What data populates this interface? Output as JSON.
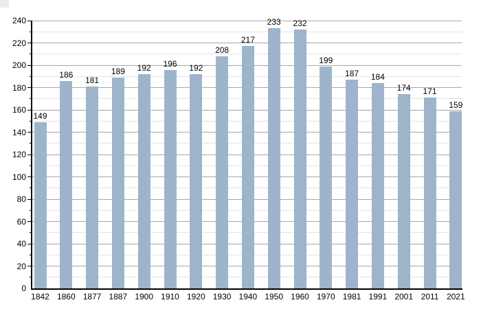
{
  "chart_data": {
    "type": "bar",
    "categories": [
      "1842",
      "1860",
      "1877",
      "1887",
      "1900",
      "1910",
      "1920",
      "1930",
      "1940",
      "1950",
      "1960",
      "1970",
      "1981",
      "1991",
      "2001",
      "2011",
      "2021"
    ],
    "values": [
      149,
      186,
      181,
      189,
      192,
      196,
      192,
      208,
      217,
      233,
      232,
      199,
      187,
      184,
      174,
      171,
      159
    ],
    "xlabel": "",
    "ylabel": "",
    "ylim": [
      0,
      240
    ],
    "ytick_step": 20,
    "minor_ytick_step": 10,
    "yticks": [
      "0",
      "20",
      "40",
      "60",
      "80",
      "100",
      "120",
      "140",
      "160",
      "180",
      "200",
      "220",
      "240"
    ],
    "data_labels": true,
    "grid": true,
    "legend": false,
    "colors": {
      "bar_fill": "#9db4cb",
      "major_grid": "#a6a6a6",
      "minor_grid": "#e3e3e3",
      "axis": "#000000",
      "text": "#000000",
      "background": "#ffffff",
      "corner_artifact": "#ececec"
    }
  }
}
